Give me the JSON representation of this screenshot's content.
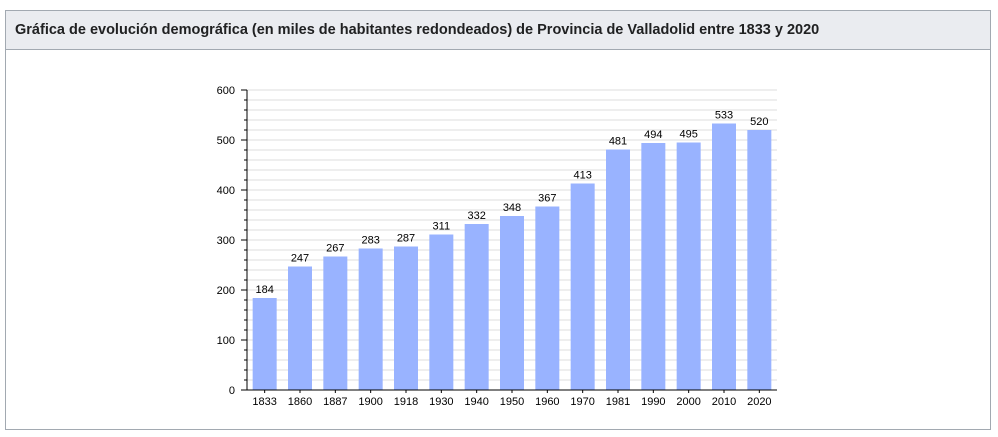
{
  "caption": "Gráfica de evolución demográfica (en miles de habitantes redondeados) de Provincia de Valladolid entre 1833 y 2020",
  "chart_data": {
    "type": "bar",
    "title": "Gráfica de evolución demográfica (en miles de habitantes redondeados) de Provincia de Valladolid entre 1833 y 2020",
    "categories": [
      "1833",
      "1860",
      "1887",
      "1900",
      "1918",
      "1930",
      "1940",
      "1950",
      "1960",
      "1970",
      "1981",
      "1990",
      "2000",
      "2010",
      "2020"
    ],
    "values": [
      184,
      247,
      267,
      283,
      287,
      311,
      332,
      348,
      367,
      413,
      481,
      494,
      495,
      533,
      520
    ],
    "yticks": [
      0,
      100,
      200,
      300,
      400,
      500,
      600
    ],
    "ylim": [
      0,
      600
    ],
    "xlabel": "",
    "ylabel": "",
    "grid": true,
    "bar_color": "#99b3ff",
    "grid_color": "#dddddd",
    "axis_color": "#000000"
  }
}
